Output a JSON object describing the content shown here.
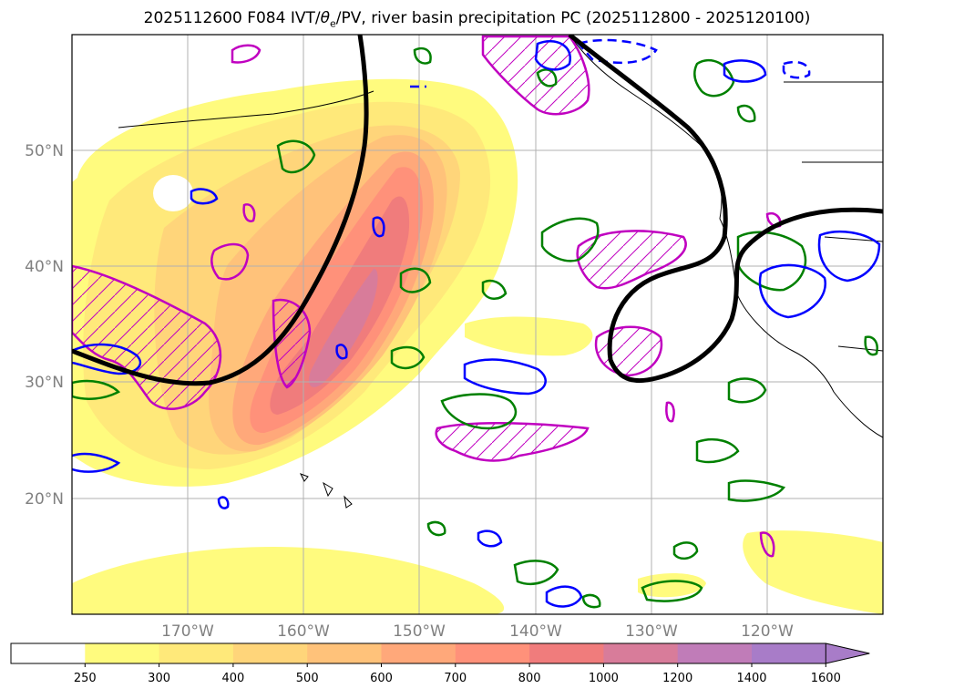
{
  "title": "2025112600 F084 IVT/θe/PV, river basin precipitation PC (2025112800 - 2025120100)",
  "title_parts": {
    "before": "2025112600 F084 IVT/",
    "theta": "θ",
    "sub": "e",
    "after": "/PV, river basin precipitation PC (2025112800 - 2025120100)"
  },
  "lat_labels": [
    "50°N",
    "40°N",
    "30°N",
    "20°N"
  ],
  "lat_values": [
    50,
    40,
    30,
    20
  ],
  "lon_labels": [
    "170°W",
    "160°W",
    "150°W",
    "140°W",
    "130°W",
    "120°W"
  ],
  "lon_values": [
    -170,
    -160,
    -150,
    -140,
    -130,
    -120
  ],
  "extent": {
    "lon_min": -180,
    "lon_max": -110,
    "lat_min": 10,
    "lat_max": 60
  },
  "colorbar": {
    "ticks": [
      "250",
      "300",
      "400",
      "500",
      "600",
      "700",
      "800",
      "1000",
      "1200",
      "1400",
      "1600"
    ],
    "colors": [
      "#ffffff",
      "#fffb7e",
      "#ffe97a",
      "#ffd57a",
      "#ffc27a",
      "#ffa87a",
      "#ff917a",
      "#f07c7c",
      "#d87c9a",
      "#c07cb8",
      "#a87cc8"
    ],
    "extend": "max"
  },
  "legend_colors": {
    "pv": "#000000",
    "theta_e_pos": "#008000",
    "theta_e_neg": "#0000ff",
    "precip_pc": "#c000c0",
    "grid": "#b0b0b0",
    "label": "#808080"
  }
}
